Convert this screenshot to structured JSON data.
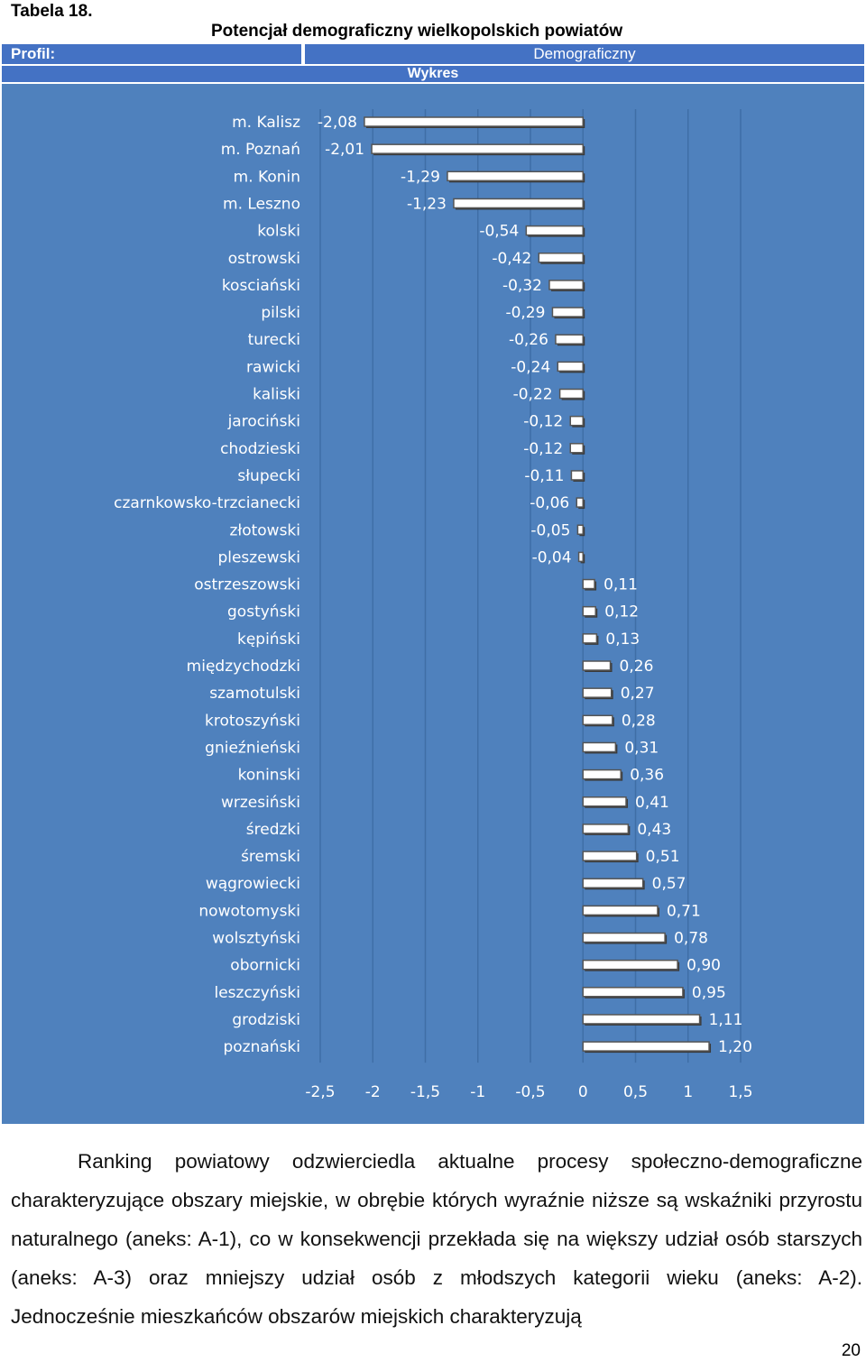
{
  "header": {
    "table_number": "Tabela 18.",
    "title": "Potencjał demograficzny wielkopolskich powiatów",
    "profil_label": "Profil:",
    "profil_value": "Demograficzny",
    "wykres_label": "Wykres"
  },
  "chart_data": {
    "type": "bar",
    "orientation": "horizontal",
    "categories": [
      "m. Kalisz",
      "m. Poznań",
      "m. Konin",
      "m. Leszno",
      "kolski",
      "ostrowski",
      "kosciański",
      "pilski",
      "turecki",
      "rawicki",
      "kaliski",
      "jarociński",
      "chodzieski",
      "słupecki",
      "czarnkowsko-trzcianecki",
      "złotowski",
      "pleszewski",
      "ostrzeszowski",
      "gostyński",
      "kępiński",
      "międzychodzki",
      "szamotulski",
      "krotoszyński",
      "gnieźnieński",
      "koninski",
      "wrzesiński",
      "średzki",
      "śremski",
      "wągrowiecki",
      "nowotomyski",
      "wolsztyński",
      "obornicki",
      "leszczyński",
      "grodziski",
      "poznański"
    ],
    "values": [
      -2.08,
      -2.01,
      -1.29,
      -1.23,
      -0.54,
      -0.42,
      -0.32,
      -0.29,
      -0.26,
      -0.24,
      -0.22,
      -0.12,
      -0.12,
      -0.11,
      -0.06,
      -0.05,
      -0.04,
      0.11,
      0.12,
      0.13,
      0.26,
      0.27,
      0.28,
      0.31,
      0.36,
      0.41,
      0.43,
      0.51,
      0.57,
      0.71,
      0.78,
      0.9,
      0.95,
      1.11,
      1.2
    ],
    "value_labels": [
      "-2,08",
      "-2,01",
      "-1,29",
      "-1,23",
      "-0,54",
      "-0,42",
      "-0,32",
      "-0,29",
      "-0,26",
      "-0,24",
      "-0,22",
      "-0,12",
      "-0,12",
      "-0,11",
      "-0,06",
      "-0,05",
      "-0,04",
      "0,11",
      "0,12",
      "0,13",
      "0,26",
      "0,27",
      "0,28",
      "0,31",
      "0,36",
      "0,41",
      "0,43",
      "0,51",
      "0,57",
      "0,71",
      "0,78",
      "0,90",
      "0,95",
      "1,11",
      "1,20"
    ],
    "xlim": [
      -2.5,
      1.5
    ],
    "x_ticks": [
      -2.5,
      -2,
      -1.5,
      -1,
      -0.5,
      0,
      0.5,
      1,
      1.5
    ],
    "x_tick_labels": [
      "-2,5",
      "-2",
      "-1,5",
      "-1",
      "-0,5",
      "0",
      "0,5",
      "1",
      "1,5"
    ],
    "grid": true,
    "colors": {
      "background": "#4f81bd",
      "bar_fill": "#ffffff",
      "bar_stroke": "#555555",
      "bar_shadow": "#3a3a3a",
      "gridline": "#3f6ea6",
      "text": "#ffffff"
    }
  },
  "paragraph": {
    "text": "Ranking powiatowy odzwierciedla aktualne procesy społeczno-demograficzne charakteryzujące obszary miejskie, w obrębie których wyraźnie niższe są wskaźniki przyrostu naturalnego (aneks: A-1), co w konsekwencji przekłada się na większy udział osób starszych (aneks: A-3) oraz mniejszy udział osób z młodszych kategorii wieku (aneks: A-2). Jednocześnie mieszkańców obszarów miejskich charakteryzują"
  },
  "page_number": "20"
}
